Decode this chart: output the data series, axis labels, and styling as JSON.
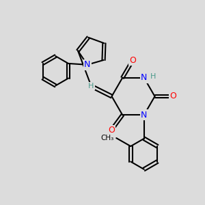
{
  "bg_color": "#dcdcdc",
  "bond_color": "#000000",
  "bond_width": 1.5,
  "atom_colors": {
    "N": "#0000ff",
    "O": "#ff0000",
    "H": "#4a9a8a",
    "C": "#000000"
  },
  "font_size_atom": 9,
  "font_size_H": 8
}
